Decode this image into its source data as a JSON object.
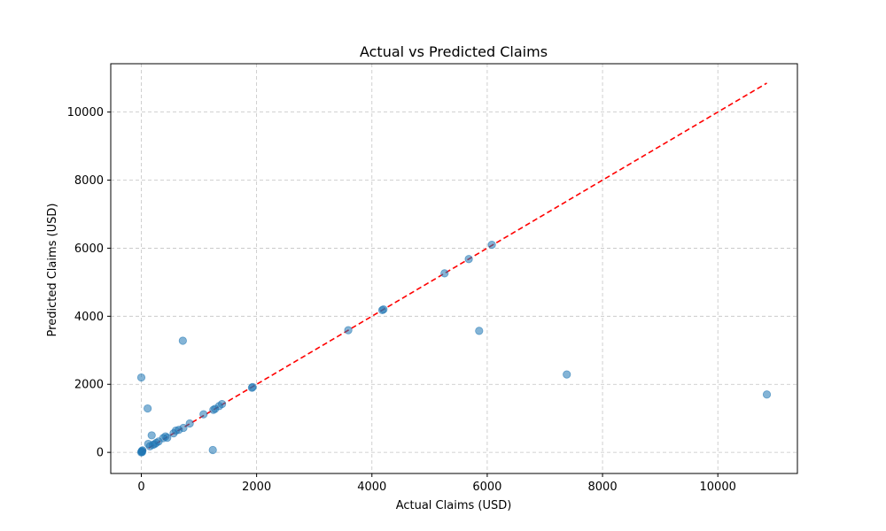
{
  "chart_data": {
    "type": "scatter",
    "title": "Actual vs Predicted Claims",
    "xlabel": "Actual Claims (USD)",
    "ylabel": "Predicted Claims (USD)",
    "xlim": [
      -530,
      11380
    ],
    "ylim": [
      -620,
      11420
    ],
    "x_ticks": [
      0,
      2000,
      4000,
      6000,
      8000,
      10000
    ],
    "y_ticks": [
      0,
      2000,
      4000,
      6000,
      8000,
      10000
    ],
    "x_tick_labels": [
      "0",
      "2000",
      "4000",
      "6000",
      "8000",
      "10000"
    ],
    "y_tick_labels": [
      "0",
      "2000",
      "4000",
      "6000",
      "8000",
      "10000"
    ],
    "grid": true,
    "point_color": "#1f77b4",
    "reference_line": {
      "from": [
        0,
        0
      ],
      "to": [
        10850,
        10850
      ],
      "color": "#ff0000",
      "style": "dashed"
    },
    "points": [
      {
        "x": 0,
        "y": 0
      },
      {
        "x": 5,
        "y": 20
      },
      {
        "x": 10,
        "y": 40
      },
      {
        "x": 15,
        "y": 10
      },
      {
        "x": 20,
        "y": 60
      },
      {
        "x": 0,
        "y": 2200
      },
      {
        "x": 110,
        "y": 1290
      },
      {
        "x": 120,
        "y": 250
      },
      {
        "x": 150,
        "y": 180
      },
      {
        "x": 180,
        "y": 500
      },
      {
        "x": 200,
        "y": 220
      },
      {
        "x": 230,
        "y": 240
      },
      {
        "x": 260,
        "y": 280
      },
      {
        "x": 300,
        "y": 320
      },
      {
        "x": 380,
        "y": 420
      },
      {
        "x": 420,
        "y": 470
      },
      {
        "x": 450,
        "y": 430
      },
      {
        "x": 560,
        "y": 560
      },
      {
        "x": 600,
        "y": 640
      },
      {
        "x": 650,
        "y": 660
      },
      {
        "x": 720,
        "y": 3280
      },
      {
        "x": 730,
        "y": 720
      },
      {
        "x": 840,
        "y": 850
      },
      {
        "x": 1080,
        "y": 1120
      },
      {
        "x": 1240,
        "y": 70
      },
      {
        "x": 1250,
        "y": 1250
      },
      {
        "x": 1280,
        "y": 1280
      },
      {
        "x": 1350,
        "y": 1360
      },
      {
        "x": 1400,
        "y": 1420
      },
      {
        "x": 1920,
        "y": 1900
      },
      {
        "x": 1930,
        "y": 1920
      },
      {
        "x": 3590,
        "y": 3590
      },
      {
        "x": 4180,
        "y": 4180
      },
      {
        "x": 4200,
        "y": 4200
      },
      {
        "x": 5260,
        "y": 5260
      },
      {
        "x": 5680,
        "y": 5680
      },
      {
        "x": 5860,
        "y": 3570
      },
      {
        "x": 6080,
        "y": 6100
      },
      {
        "x": 7380,
        "y": 2290
      },
      {
        "x": 10850,
        "y": 1700
      }
    ]
  }
}
